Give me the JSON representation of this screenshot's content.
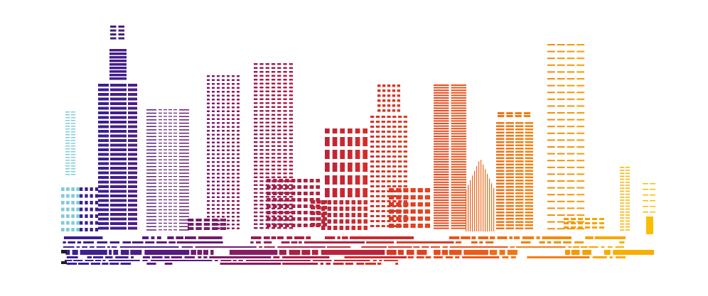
{
  "illustration": {
    "subject": "skyline",
    "palette": [
      "#7fcbd9",
      "#3d1f8f",
      "#5e1a78",
      "#8c1c5e",
      "#b3203f",
      "#d3302a",
      "#e84d1c",
      "#f07a14",
      "#f5a800",
      "#fcc400"
    ]
  }
}
